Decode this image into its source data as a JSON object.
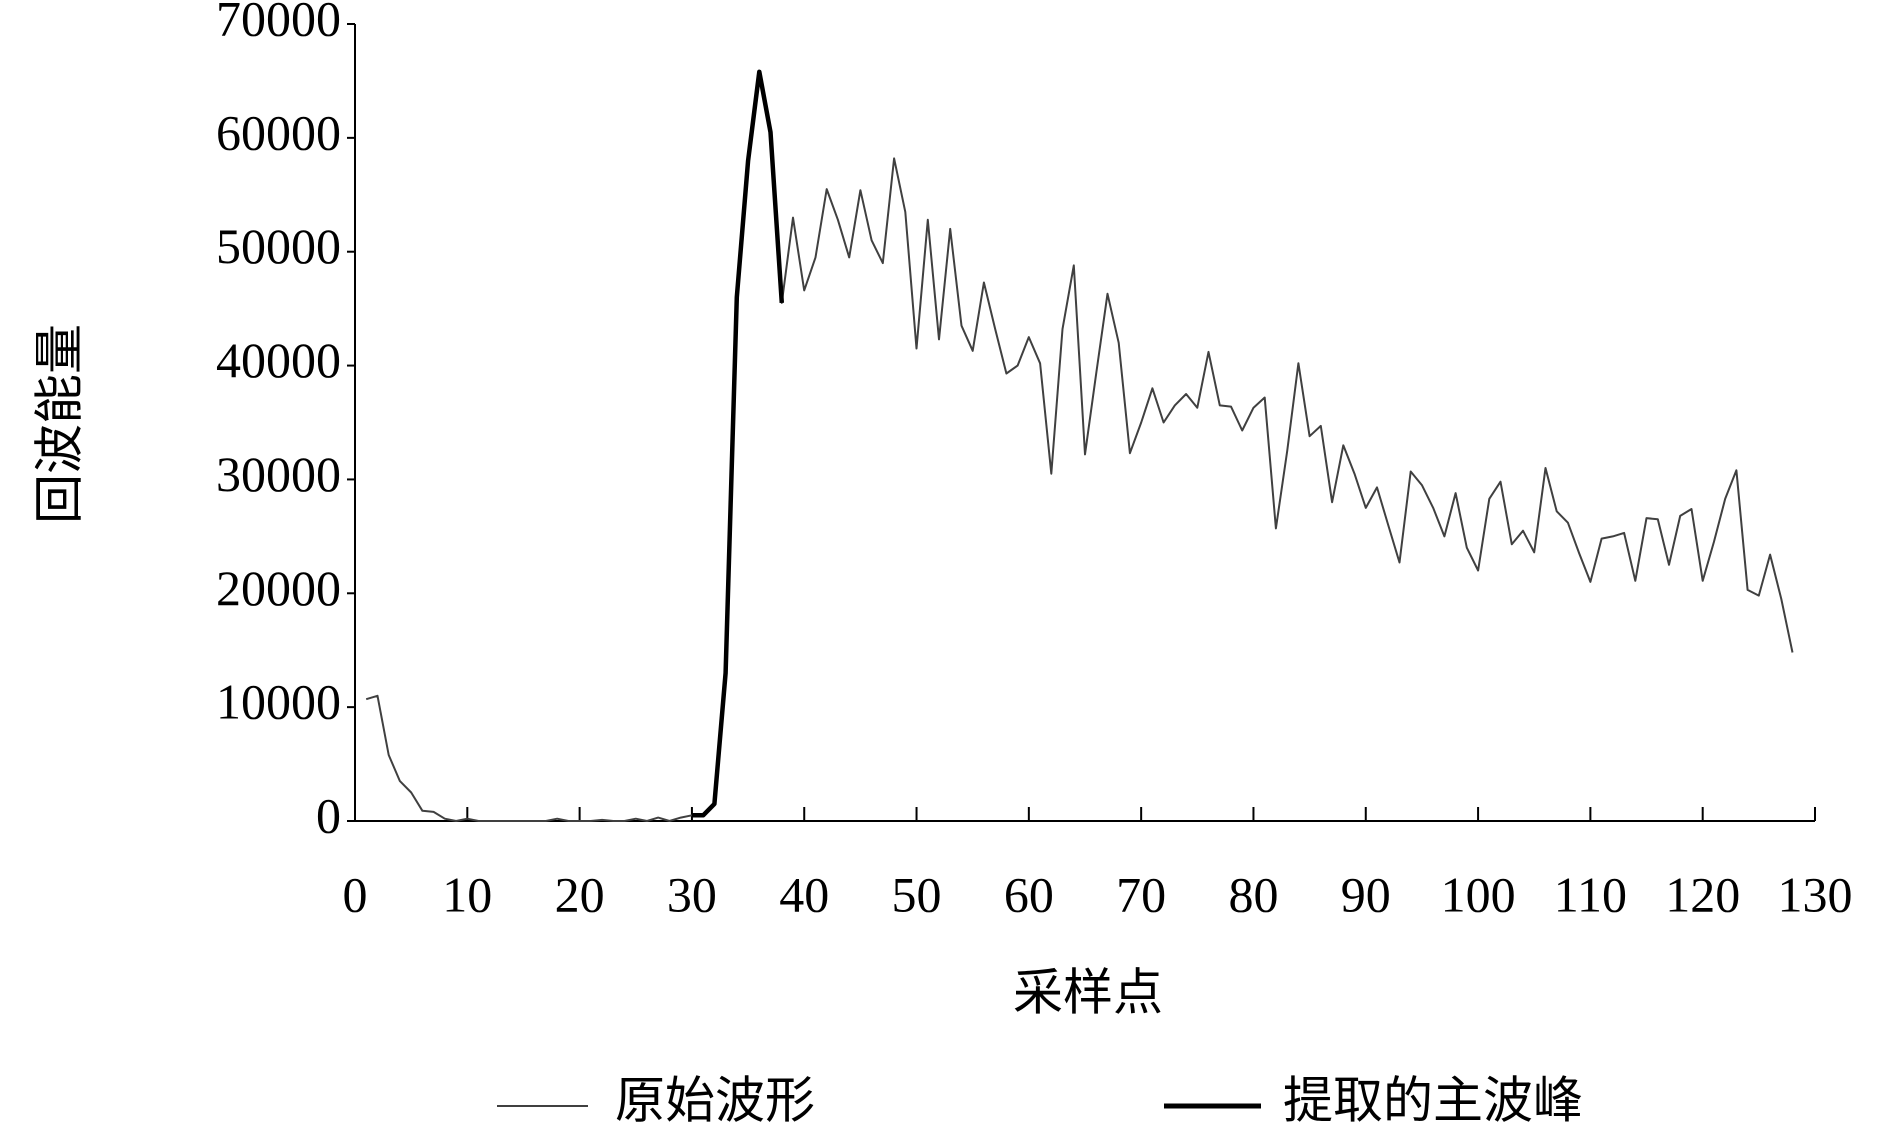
{
  "chart_data": {
    "type": "line",
    "xlabel": "采样点",
    "ylabel": "回波能量",
    "xlim": [
      0,
      130
    ],
    "xticks": [
      0,
      10,
      20,
      30,
      40,
      50,
      60,
      70,
      80,
      90,
      100,
      110,
      120,
      130
    ],
    "ylim": [
      0,
      70000
    ],
    "yticks": [
      0,
      10000,
      20000,
      30000,
      40000,
      50000,
      60000,
      70000
    ],
    "grid": false,
    "series": [
      {
        "name": "原始波形",
        "color": "#404040",
        "width": "thin",
        "x": [
          1,
          2,
          3,
          4,
          5,
          6,
          7,
          8,
          9,
          10,
          11,
          12,
          13,
          14,
          15,
          16,
          17,
          18,
          19,
          20,
          21,
          22,
          23,
          24,
          25,
          26,
          27,
          28,
          29,
          30,
          31,
          32,
          33,
          34,
          35,
          36,
          37,
          38,
          39,
          40,
          41,
          42,
          43,
          44,
          45,
          46,
          47,
          48,
          49,
          50,
          51,
          52,
          53,
          54,
          55,
          56,
          57,
          58,
          59,
          60,
          61,
          62,
          63,
          64,
          65,
          66,
          67,
          68,
          69,
          70,
          71,
          72,
          73,
          74,
          75,
          76,
          77,
          78,
          79,
          80,
          81,
          82,
          83,
          84,
          85,
          86,
          87,
          88,
          89,
          90,
          91,
          92,
          93,
          94,
          95,
          96,
          97,
          98,
          99,
          100,
          101,
          102,
          103,
          104,
          105,
          106,
          107,
          108,
          109,
          110,
          111,
          112,
          113,
          114,
          115,
          116,
          117,
          118,
          119,
          120,
          121,
          122,
          123,
          124,
          125,
          126,
          127,
          128
        ],
        "values": [
          10700,
          11000,
          5800,
          3500,
          2500,
          900,
          800,
          200,
          0,
          200,
          0,
          0,
          0,
          0,
          0,
          0,
          0,
          200,
          0,
          0,
          0,
          100,
          0,
          0,
          200,
          0,
          300,
          0,
          300,
          500,
          500,
          1500,
          13000,
          46000,
          58000,
          65800,
          60500,
          45500,
          53000,
          46600,
          49500,
          55500,
          52800,
          49500,
          55400,
          51000,
          49000,
          58200,
          53500,
          41500,
          52800,
          42300,
          52000,
          43500,
          41300,
          47300,
          43200,
          39300,
          40000,
          42500,
          40200,
          30500,
          43200,
          48800,
          32200,
          39300,
          46300,
          42000,
          32300,
          35000,
          38000,
          35000,
          36500,
          37500,
          36300,
          41200,
          36500,
          36400,
          34300,
          36300,
          37200,
          25700,
          32500,
          40200,
          33800,
          34700,
          28000,
          33000,
          30500,
          27500,
          29300,
          26000,
          22700,
          30700,
          29500,
          27500,
          25000,
          28800,
          24000,
          22000,
          28300,
          29800,
          24300,
          25500,
          23600,
          31000,
          27200,
          26200,
          23500,
          21000,
          24800,
          25000,
          25300,
          21100,
          26600,
          26500,
          22500,
          26800,
          27400,
          21100,
          24500,
          28300,
          30800,
          20300,
          19800,
          23400,
          19500,
          14800
        ]
      },
      {
        "name": "提取的主波峰",
        "color": "#000000",
        "width": "thick",
        "x": [
          30,
          31,
          32,
          33,
          34,
          35,
          36,
          37,
          38
        ],
        "values": [
          500,
          500,
          1500,
          13000,
          46000,
          58000,
          65800,
          60500,
          45500
        ]
      }
    ]
  }
}
